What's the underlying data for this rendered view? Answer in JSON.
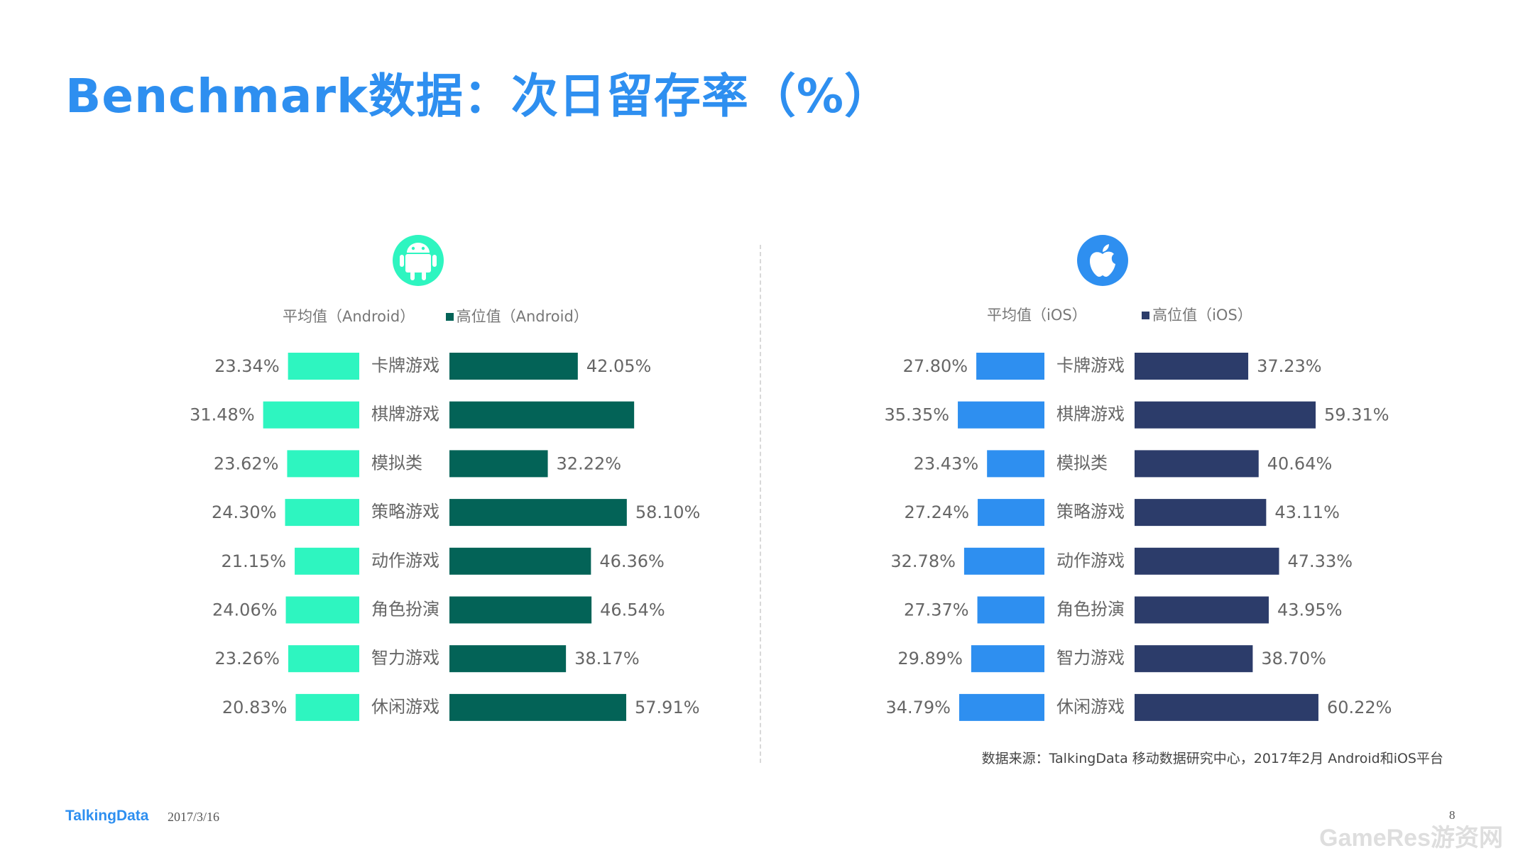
{
  "title": "Benchmark数据：次日留存率（%）",
  "source_note": "数据来源：TalkingData 移动数据研究中心，2017年2月 Android和iOS平台",
  "footer": {
    "logo": "TalkingData",
    "date": "2017/3/16",
    "page": "8"
  },
  "watermark": "GameRes游资网",
  "colors": {
    "android_avg": "#2ef5c0",
    "android_high": "#036357",
    "ios_avg": "#2e8ff0",
    "ios_high": "#2c3c6a",
    "title": "#2e8ff0"
  },
  "icons": {
    "android": "android-icon",
    "ios": "apple-icon"
  },
  "chart_data": [
    {
      "type": "bar",
      "platform": "Android",
      "categories": [
        "卡牌游戏",
        "棋牌游戏",
        "模拟类",
        "策略游戏",
        "动作游戏",
        "角色扮演",
        "智力游戏",
        "休闲游戏"
      ],
      "series": [
        {
          "name": "平均值（Android）",
          "values": [
            23.34,
            31.48,
            23.62,
            24.3,
            21.15,
            24.06,
            23.26,
            20.83
          ],
          "labels": [
            "23.34%",
            "31.48%",
            "23.62%",
            "24.30%",
            "21.15%",
            "24.06%",
            "23.26%",
            "20.83%"
          ]
        },
        {
          "name": "高位值（Android）",
          "values": [
            42.05,
            60.5,
            32.22,
            58.1,
            46.36,
            46.54,
            38.17,
            57.91
          ],
          "labels": [
            "42.05%",
            "",
            "32.22%",
            "58.10%",
            "46.36%",
            "46.54%",
            "38.17%",
            "57.91%"
          ]
        }
      ]
    },
    {
      "type": "bar",
      "platform": "iOS",
      "categories": [
        "卡牌游戏",
        "棋牌游戏",
        "模拟类",
        "策略游戏",
        "动作游戏",
        "角色扮演",
        "智力游戏",
        "休闲游戏"
      ],
      "series": [
        {
          "name": "平均值（iOS）",
          "values": [
            27.8,
            35.35,
            23.43,
            27.24,
            32.78,
            27.37,
            29.89,
            34.79
          ],
          "labels": [
            "27.80%",
            "35.35%",
            "23.43%",
            "27.24%",
            "32.78%",
            "27.37%",
            "29.89%",
            "34.79%"
          ]
        },
        {
          "name": "高位值（iOS）",
          "values": [
            37.23,
            59.31,
            40.64,
            43.11,
            47.33,
            43.95,
            38.7,
            60.22
          ],
          "labels": [
            "37.23%",
            "59.31%",
            "40.64%",
            "43.11%",
            "47.33%",
            "43.95%",
            "38.70%",
            "60.22%"
          ]
        }
      ]
    }
  ]
}
